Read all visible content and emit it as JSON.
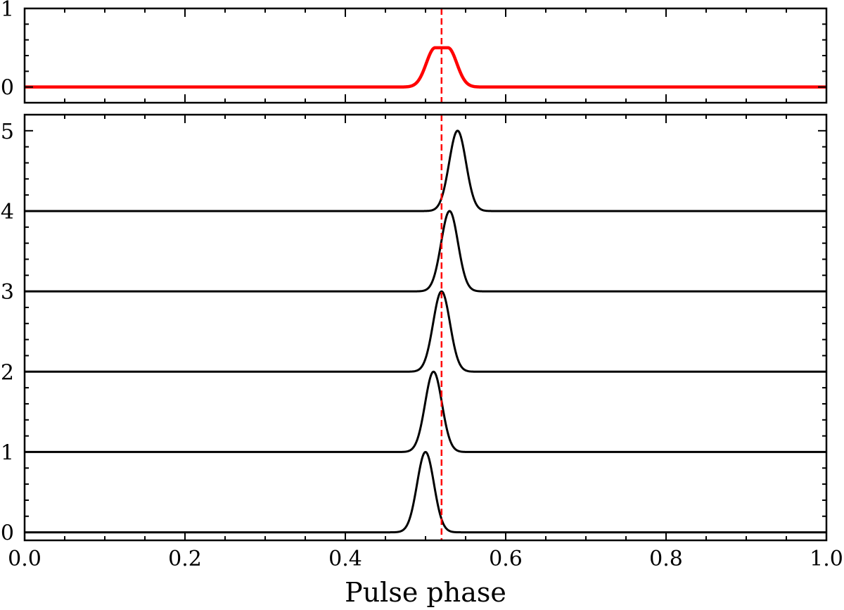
{
  "chart_data": [
    {
      "panel": "top",
      "type": "line",
      "xlim": [
        0.0,
        1.0
      ],
      "ylim": [
        -0.2,
        1.0
      ],
      "yticks": [
        0,
        1
      ],
      "ytick_labels": [
        "0",
        "1"
      ],
      "grid": false,
      "legend": "none",
      "series": [
        {
          "kind": "gaussian-pulse",
          "color": "#ff0000",
          "baseline": 0.0,
          "amplitude": 0.5,
          "center": 0.52,
          "sigma": 0.011,
          "flat_top_halfwidth": 0.008
        }
      ],
      "reference_line": {
        "x": 0.52,
        "color": "#ff0000",
        "style": "dashed"
      }
    },
    {
      "panel": "bottom",
      "type": "line",
      "xlim": [
        0.0,
        1.0
      ],
      "ylim": [
        -0.1,
        5.2
      ],
      "xticks": [
        0.0,
        0.2,
        0.4,
        0.6,
        0.8,
        1.0
      ],
      "xtick_labels": [
        "0.0",
        "0.2",
        "0.4",
        "0.6",
        "0.8",
        "1.0"
      ],
      "yticks": [
        0,
        1,
        2,
        3,
        4,
        5
      ],
      "ytick_labels": [
        "0",
        "1",
        "2",
        "3",
        "4",
        "5"
      ],
      "xlabel": "Pulse phase",
      "grid": false,
      "legend": "none",
      "series": [
        {
          "kind": "gaussian-pulse",
          "color": "#000000",
          "baseline": 0,
          "amplitude": 1.0,
          "center": 0.5,
          "sigma": 0.0105
        },
        {
          "kind": "gaussian-pulse",
          "color": "#000000",
          "baseline": 1,
          "amplitude": 1.0,
          "center": 0.51,
          "sigma": 0.0105
        },
        {
          "kind": "gaussian-pulse",
          "color": "#000000",
          "baseline": 2,
          "amplitude": 1.0,
          "center": 0.52,
          "sigma": 0.0105
        },
        {
          "kind": "gaussian-pulse",
          "color": "#000000",
          "baseline": 3,
          "amplitude": 1.0,
          "center": 0.53,
          "sigma": 0.0105
        },
        {
          "kind": "gaussian-pulse",
          "color": "#000000",
          "baseline": 4,
          "amplitude": 1.0,
          "center": 0.54,
          "sigma": 0.0105
        }
      ],
      "reference_line": {
        "x": 0.52,
        "color": "#ff0000",
        "style": "dashed"
      }
    }
  ]
}
